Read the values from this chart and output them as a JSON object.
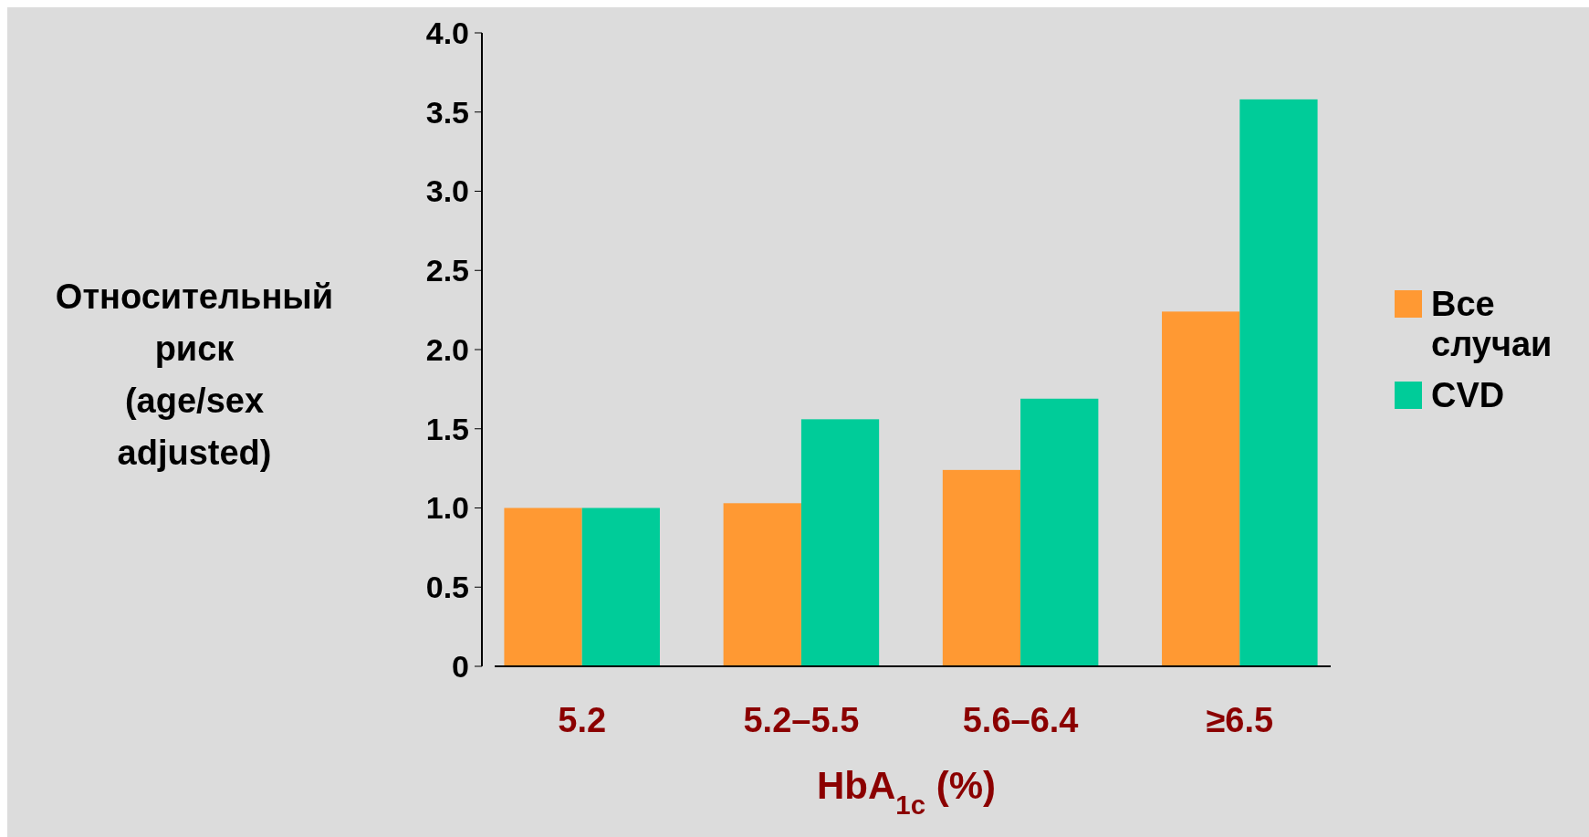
{
  "chart_data": {
    "type": "bar",
    "xlabel": "HbA$_{1c}$ (%)",
    "ylabel": "Относительный риск (age/sex adjusted)",
    "categories": [
      "5.2",
      "5.2–5.5",
      "5.6–6.4",
      "≥6.5"
    ],
    "series": [
      {
        "name": "Все случаи",
        "color": "#ff9933",
        "values": [
          1.0,
          1.03,
          1.24,
          2.24
        ]
      },
      {
        "name": "CVD",
        "color": "#00cc99",
        "values": [
          1.0,
          1.56,
          1.69,
          3.58
        ]
      }
    ],
    "ylim": [
      0,
      4
    ],
    "yticks": [
      {
        "value": 0,
        "label": "0"
      },
      {
        "value": 0.5,
        "label": "0.5"
      },
      {
        "value": 1,
        "label": "1.0"
      },
      {
        "value": 1.5,
        "label": "1.5"
      },
      {
        "value": 2,
        "label": "2.0"
      },
      {
        "value": 2.5,
        "label": "2.5"
      },
      {
        "value": 3,
        "label": "3.0"
      },
      {
        "value": 3.5,
        "label": "3.5"
      },
      {
        "value": 4,
        "label": "4.0"
      }
    ],
    "grid": false,
    "legend": "right"
  }
}
